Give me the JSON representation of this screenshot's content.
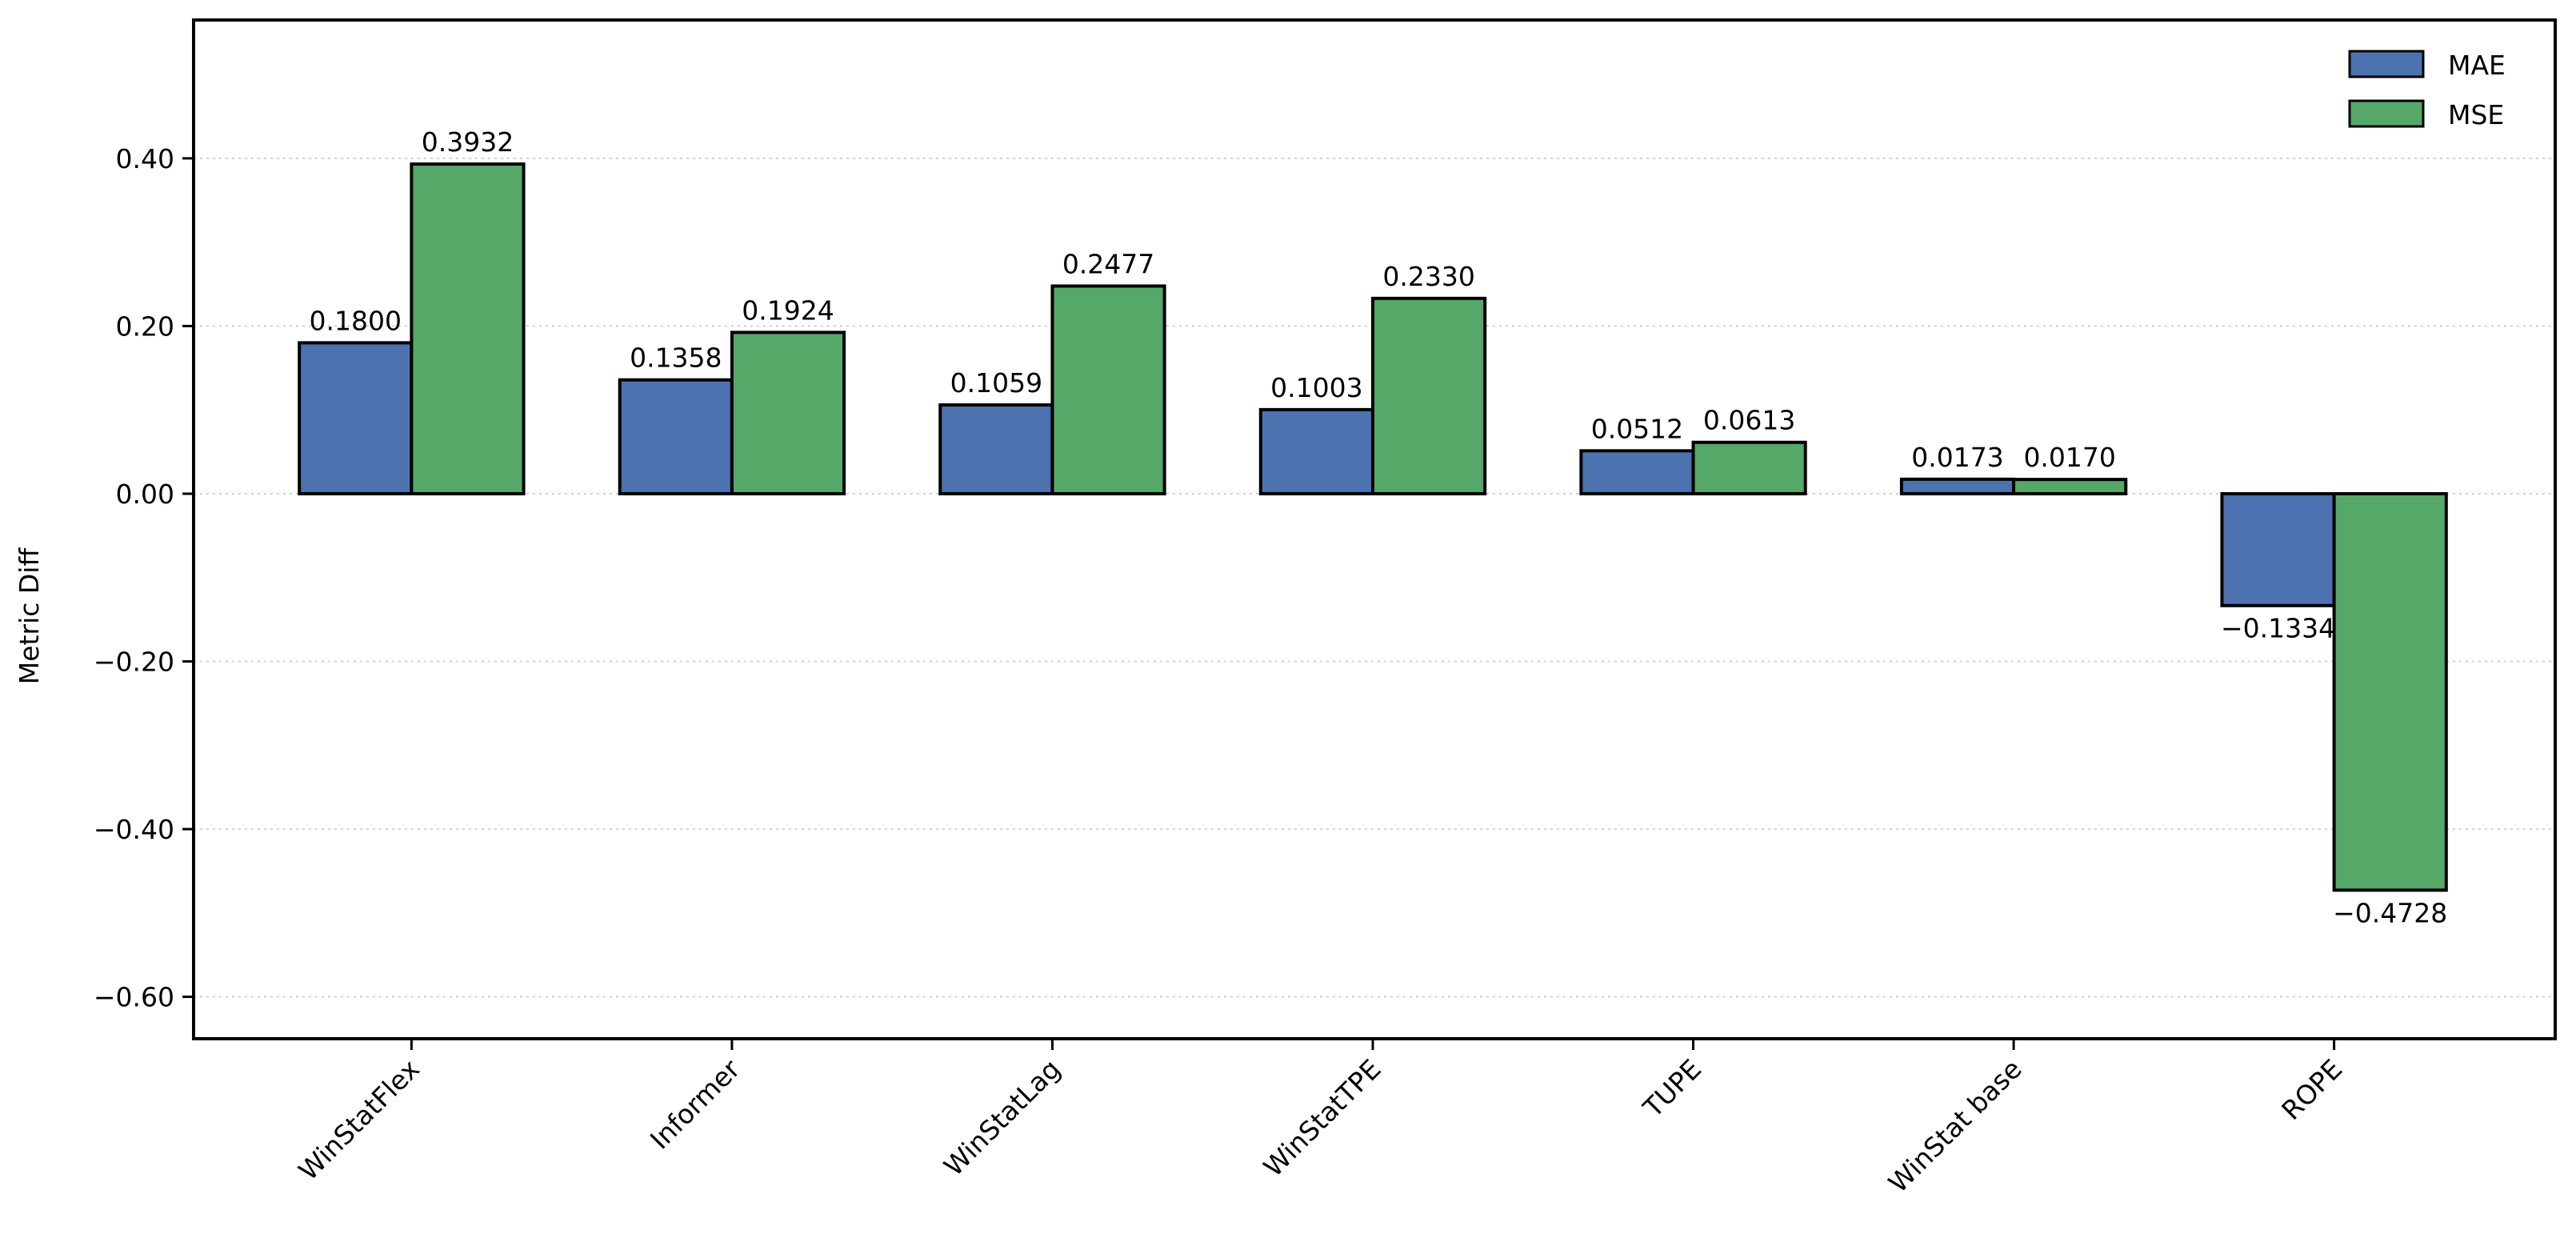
{
  "chart_data": {
    "type": "bar",
    "title": "",
    "xlabel": "",
    "ylabel": "Metric Diff",
    "categories": [
      "WinStatFlex",
      "Informer",
      "WinStatLag",
      "WinStatTPE",
      "TUPE",
      "WinStat base",
      "ROPE"
    ],
    "series": [
      {
        "name": "MAE",
        "color": "#4c72b0",
        "values": [
          0.18,
          0.1358,
          0.1059,
          0.1003,
          0.0512,
          0.0173,
          -0.1334
        ]
      },
      {
        "name": "MSE",
        "color": "#55a868",
        "values": [
          0.3932,
          0.1924,
          0.2477,
          0.233,
          0.0613,
          0.017,
          -0.4728
        ]
      }
    ],
    "data_labels": {
      "MAE": [
        "0.1800",
        "0.1358",
        "0.1059",
        "0.1003",
        "0.0512",
        "0.0173",
        "−0.1334"
      ],
      "MSE": [
        "0.3932",
        "0.1924",
        "0.2477",
        "0.2330",
        "0.0613",
        "0.0170",
        "−0.4728"
      ]
    },
    "yticks": [
      0.4,
      0.2,
      0.0,
      -0.2,
      -0.4,
      -0.6
    ],
    "ytick_labels": [
      "0.40",
      "0.20",
      "0.00",
      "−0.20",
      "−0.40",
      "−0.60"
    ],
    "ylim": [
      -0.65,
      0.565
    ],
    "grid": "horizontal dotted",
    "legend": "top-right"
  }
}
